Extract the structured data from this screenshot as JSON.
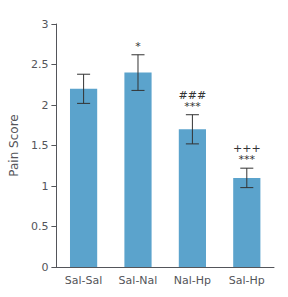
{
  "chart_data": {
    "type": "bar",
    "categories": [
      "Sal-Sal",
      "Sal-Nal",
      "Nal-Hp",
      "Sal-Hp"
    ],
    "values": [
      2.2,
      2.4,
      1.7,
      1.1
    ],
    "errors": [
      0.18,
      0.22,
      0.18,
      0.12
    ],
    "color": "#5BA3CC",
    "ylabel": "Pain Score",
    "ylim": [
      0,
      3.0
    ],
    "yticks": [
      0,
      0.5,
      1,
      1.5,
      2,
      2.5,
      3
    ],
    "grid": false,
    "annotations": [
      {
        "category": "Sal-Nal",
        "lines": [
          "*"
        ]
      },
      {
        "category": "Nal-Hp",
        "lines": [
          "###",
          "***"
        ]
      },
      {
        "category": "Sal-Hp",
        "lines": [
          "+++",
          "***"
        ]
      }
    ]
  }
}
